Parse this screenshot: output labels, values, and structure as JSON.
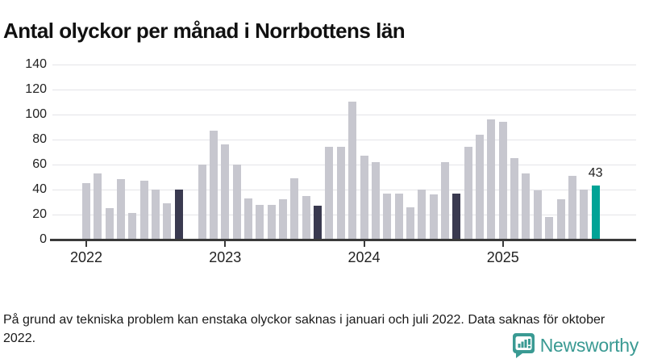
{
  "header": {
    "title": "Antal olyckor per månad i Norrbottens län"
  },
  "chart_data": {
    "type": "bar",
    "title": "Antal olyckor per månad i Norrbottens län",
    "xlabel": "",
    "ylabel": "",
    "ylim": [
      0,
      140
    ],
    "ytick_interval": 20,
    "ytick_labels": [
      "0",
      "20",
      "40",
      "60",
      "80",
      "100",
      "120",
      "140"
    ],
    "grid": "horizontal",
    "legend": "none",
    "x_unit": "month",
    "x_ticks": [
      {
        "label": "2022",
        "month": "2022-01"
      },
      {
        "label": "2023",
        "month": "2023-01"
      },
      {
        "label": "2024",
        "month": "2024-01"
      },
      {
        "label": "2025",
        "month": "2025-01"
      }
    ],
    "missing_months": [
      "2022-10"
    ],
    "dark_months": [
      "2022-09",
      "2023-09",
      "2024-09"
    ],
    "highlight_month": "2025-09",
    "annotation": {
      "month": "2025-09",
      "text": "43"
    },
    "colors": {
      "bar": "#c7c7cf",
      "dark": "#3a3a50",
      "highlight": "#00a396",
      "gridline": "#e4e4e8",
      "axis": "#3a3a3a"
    },
    "points": [
      {
        "month": "2022-01",
        "value": 45
      },
      {
        "month": "2022-02",
        "value": 53
      },
      {
        "month": "2022-03",
        "value": 25
      },
      {
        "month": "2022-04",
        "value": 48
      },
      {
        "month": "2022-05",
        "value": 21
      },
      {
        "month": "2022-06",
        "value": 47
      },
      {
        "month": "2022-07",
        "value": 40
      },
      {
        "month": "2022-08",
        "value": 29
      },
      {
        "month": "2022-09",
        "value": 40
      },
      {
        "month": "2022-10",
        "value": null
      },
      {
        "month": "2022-11",
        "value": 60
      },
      {
        "month": "2022-12",
        "value": 87
      },
      {
        "month": "2023-01",
        "value": 76
      },
      {
        "month": "2023-02",
        "value": 60
      },
      {
        "month": "2023-03",
        "value": 33
      },
      {
        "month": "2023-04",
        "value": 28
      },
      {
        "month": "2023-05",
        "value": 28
      },
      {
        "month": "2023-06",
        "value": 32
      },
      {
        "month": "2023-07",
        "value": 49
      },
      {
        "month": "2023-08",
        "value": 35
      },
      {
        "month": "2023-09",
        "value": 27
      },
      {
        "month": "2023-10",
        "value": 74
      },
      {
        "month": "2023-11",
        "value": 74
      },
      {
        "month": "2023-12",
        "value": 110
      },
      {
        "month": "2024-01",
        "value": 67
      },
      {
        "month": "2024-02",
        "value": 62
      },
      {
        "month": "2024-03",
        "value": 37
      },
      {
        "month": "2024-04",
        "value": 37
      },
      {
        "month": "2024-05",
        "value": 26
      },
      {
        "month": "2024-06",
        "value": 40
      },
      {
        "month": "2024-07",
        "value": 36
      },
      {
        "month": "2024-08",
        "value": 62
      },
      {
        "month": "2024-09",
        "value": 37
      },
      {
        "month": "2024-10",
        "value": 74
      },
      {
        "month": "2024-11",
        "value": 84
      },
      {
        "month": "2024-12",
        "value": 96
      },
      {
        "month": "2025-01",
        "value": 94
      },
      {
        "month": "2025-02",
        "value": 65
      },
      {
        "month": "2025-03",
        "value": 53
      },
      {
        "month": "2025-04",
        "value": 39
      },
      {
        "month": "2025-05",
        "value": 18
      },
      {
        "month": "2025-06",
        "value": 32
      },
      {
        "month": "2025-07",
        "value": 51
      },
      {
        "month": "2025-08",
        "value": 40
      },
      {
        "month": "2025-09",
        "value": 43
      }
    ]
  },
  "footnote": {
    "text": "På grund av tekniska problem kan enstaka olyckor saknas i januari och juli 2022. Data saknas för oktober 2022."
  },
  "branding": {
    "logo_text": "Newsworthy",
    "logo_color": "#3a9a93",
    "logo_icon": "newsworthy-chart-bubble-icon"
  }
}
